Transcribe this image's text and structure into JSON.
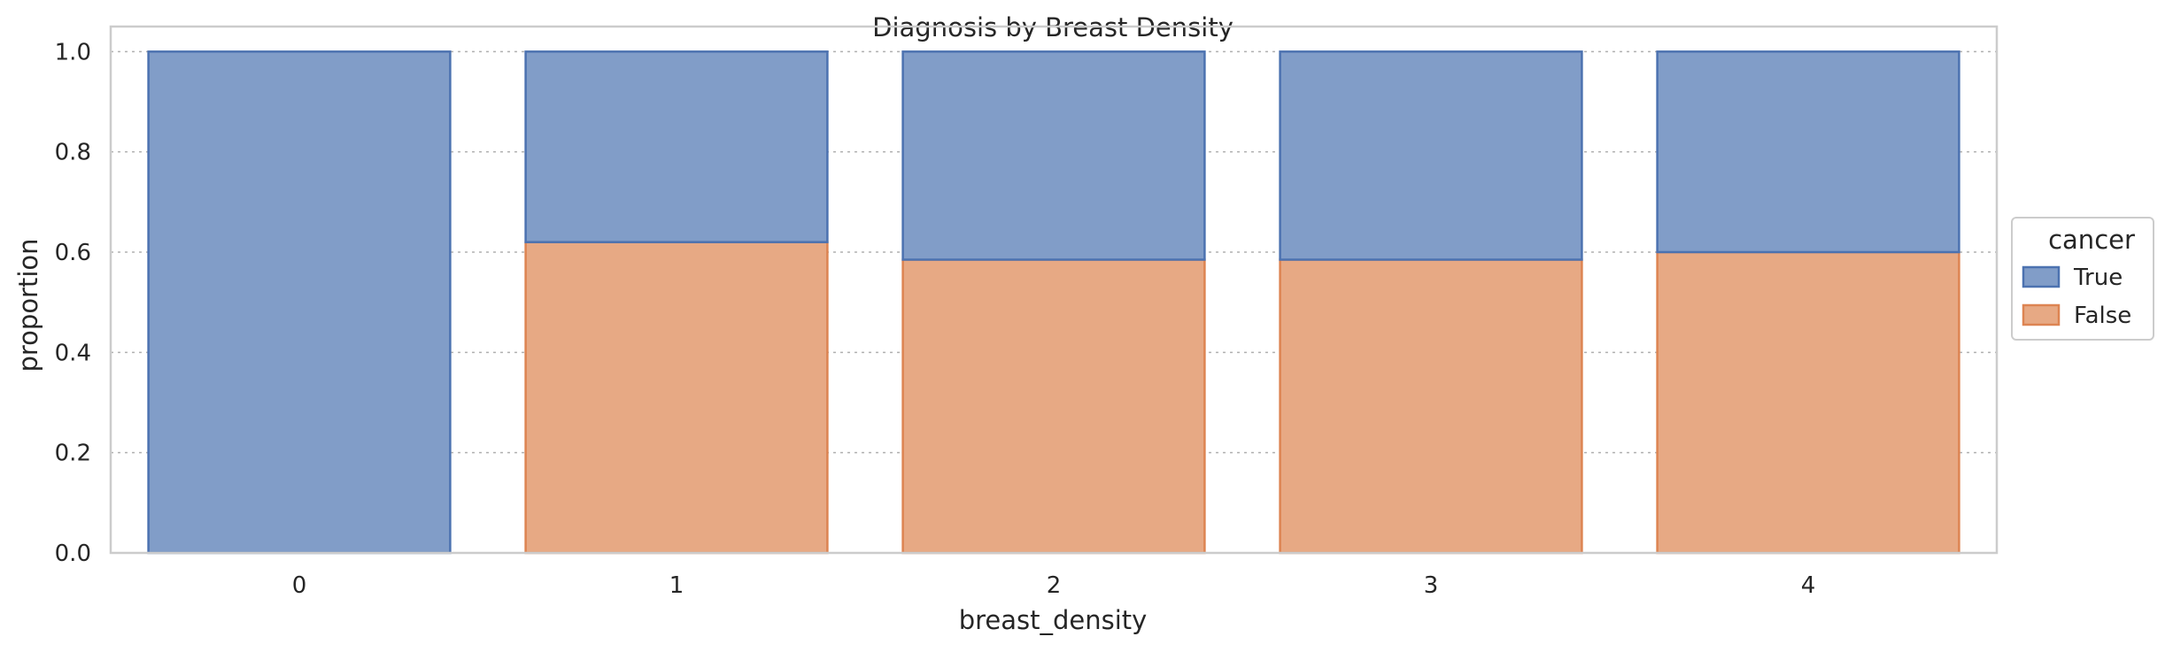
{
  "chart_data": {
    "type": "bar",
    "stacked": true,
    "title": "Diagnosis by Breast Density",
    "xlabel": "breast_density",
    "ylabel": "proportion",
    "categories": [
      "0",
      "1",
      "2",
      "3",
      "4"
    ],
    "ylim": [
      0,
      1.05
    ],
    "yticks": [
      "0.0",
      "0.2",
      "0.4",
      "0.6",
      "0.8",
      "1.0"
    ],
    "grid": "y-dotted",
    "legend": {
      "title": "cancer",
      "placement": "outside-right"
    },
    "series": [
      {
        "name": "False",
        "color": "#e7a984",
        "edge": "#dd8452",
        "values": [
          0.0,
          0.62,
          0.585,
          0.585,
          0.6
        ]
      },
      {
        "name": "True",
        "color": "#819dc8",
        "edge": "#4c72b0",
        "values": [
          1.0,
          0.38,
          0.415,
          0.415,
          0.4
        ]
      }
    ],
    "legend_order": [
      "True",
      "False"
    ]
  }
}
